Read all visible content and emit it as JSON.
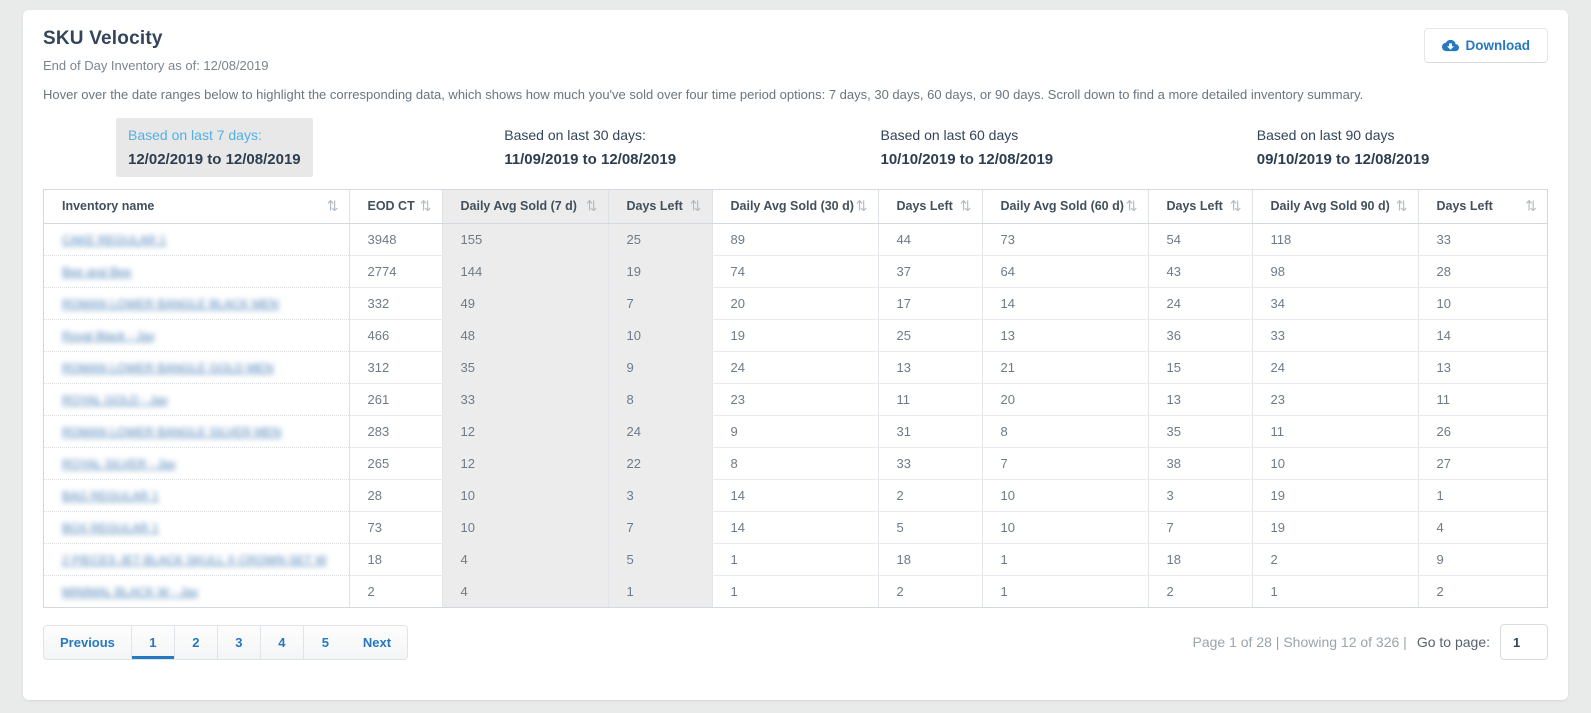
{
  "page": {
    "title": "SKU Velocity",
    "subtitle": "End of Day Inventory as of: 12/08/2019",
    "description": "Hover over the date ranges below to highlight the corresponding data, which shows how much you've sold over four time period options: 7 days, 30 days, 60 days, or 90 days. Scroll down to find a more detailed inventory summary."
  },
  "toolbar": {
    "download_label": "Download",
    "download_icon": "cloud-download-icon"
  },
  "date_ranges": [
    {
      "label": "Based on last 7 days:",
      "range": "12/02/2019 to 12/08/2019",
      "highlighted": true
    },
    {
      "label": "Based on last 30 days:",
      "range": "11/09/2019 to 12/08/2019",
      "highlighted": false
    },
    {
      "label": "Based on last 60 days",
      "range": "10/10/2019 to 12/08/2019",
      "highlighted": false
    },
    {
      "label": "Based on last 90 days",
      "range": "09/10/2019 to 12/08/2019",
      "highlighted": false
    }
  ],
  "table": {
    "columns": [
      "Inventory name",
      "EOD CT",
      "Daily Avg Sold (7 d)",
      "Days Left",
      "Daily Avg Sold (30 d)",
      "Days Left",
      "Daily Avg Sold (60 d)",
      "Days Left",
      "Daily Avg Sold 90 d)",
      "Days Left"
    ],
    "sort_icon": "⇅",
    "highlighted_columns": [
      2,
      3
    ],
    "names_redacted": true,
    "rows": [
      {
        "name": "CAKE REGULAR 1",
        "values": [
          3948,
          155,
          25,
          89,
          44,
          73,
          54,
          118,
          33
        ]
      },
      {
        "name": "Bee and Bee",
        "values": [
          2774,
          144,
          19,
          74,
          37,
          64,
          43,
          98,
          28
        ]
      },
      {
        "name": "ROMAN LOWER BANGLE BLACK MEN",
        "values": [
          332,
          49,
          7,
          20,
          17,
          14,
          24,
          34,
          10
        ]
      },
      {
        "name": "Royal Black - Jay",
        "values": [
          466,
          48,
          10,
          19,
          25,
          13,
          36,
          33,
          14
        ]
      },
      {
        "name": "ROMAN LOWER BANGLE GOLD MEN",
        "values": [
          312,
          35,
          9,
          24,
          13,
          21,
          15,
          24,
          13
        ]
      },
      {
        "name": "ROYAL GOLD - Jay",
        "values": [
          261,
          33,
          8,
          23,
          11,
          20,
          13,
          23,
          11
        ]
      },
      {
        "name": "ROMAN LOWER BANGLE SILVER MEN",
        "values": [
          283,
          12,
          24,
          9,
          31,
          8,
          35,
          11,
          26
        ]
      },
      {
        "name": "ROYAL SILVER - Jay",
        "values": [
          265,
          12,
          22,
          8,
          33,
          7,
          38,
          10,
          27
        ]
      },
      {
        "name": "BAG REGULAR 1",
        "values": [
          28,
          10,
          3,
          14,
          2,
          10,
          3,
          19,
          1
        ]
      },
      {
        "name": "BOX REGULAR 1",
        "values": [
          73,
          10,
          7,
          14,
          5,
          10,
          7,
          19,
          4
        ]
      },
      {
        "name": "2 PIECES JET BLACK SKULL X CROWN SET W",
        "values": [
          18,
          4,
          5,
          1,
          18,
          1,
          18,
          2,
          9
        ]
      },
      {
        "name": "MINIMAL BLACK W - Jay",
        "values": [
          2,
          4,
          1,
          1,
          2,
          1,
          2,
          1,
          2
        ]
      }
    ]
  },
  "pagination": {
    "previous_label": "Previous",
    "next_label": "Next",
    "pages": [
      "1",
      "2",
      "3",
      "4",
      "5"
    ],
    "active_page": "1",
    "summary": "Page 1 of 28 | Showing 12 of 326 |",
    "goto_label": "Go to page:",
    "goto_value": "1"
  },
  "colors": {
    "accent_blue": "#2678bf",
    "light_blue": "#54b0e3",
    "title_navy": "#33455a",
    "highlight_gray": "#e8e8e8",
    "page_background": "#e9eaea"
  }
}
